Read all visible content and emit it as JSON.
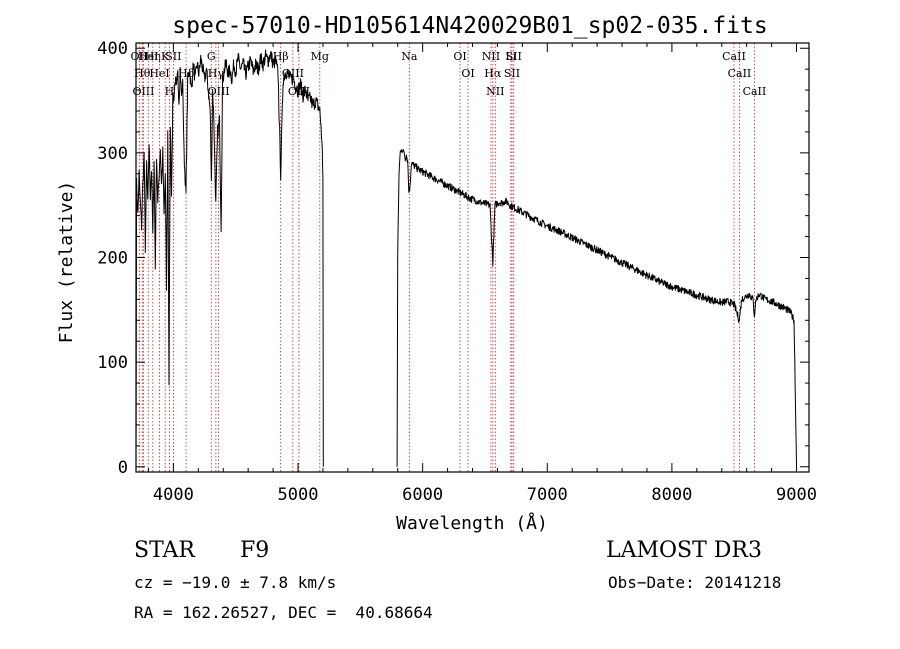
{
  "chart_data": {
    "type": "line",
    "title": "spec-57010-HD105614N420029B01_sp02-035.fits",
    "xlabel": "Wavelength (Å)",
    "ylabel": "Flux (relative)",
    "xlim": [
      3700,
      9100
    ],
    "ylim": [
      -5,
      405
    ],
    "xticks": [
      4000,
      5000,
      6000,
      7000,
      8000,
      9000
    ],
    "yticks": [
      0,
      100,
      200,
      300,
      400
    ],
    "grid": false,
    "series": [
      {
        "segments": [
          [
            [
              3700,
              0
            ],
            [
              3705,
              270
            ],
            [
              3715,
              240
            ],
            [
              3725,
              280
            ],
            [
              3735,
              250
            ],
            [
              3745,
              230
            ],
            [
              3755,
              270
            ],
            [
              3765,
              300
            ],
            [
              3775,
              210
            ],
            [
              3785,
              290
            ],
            [
              3795,
              250
            ],
            [
              3805,
              310
            ],
            [
              3815,
              260
            ],
            [
              3825,
              285
            ],
            [
              3835,
              220
            ],
            [
              3845,
              295
            ],
            [
              3855,
              190
            ],
            [
              3865,
              300
            ],
            [
              3875,
              250
            ],
            [
              3885,
              280
            ],
            [
              3895,
              305
            ],
            [
              3905,
              270
            ],
            [
              3915,
              300
            ],
            [
              3925,
              240
            ],
            [
              3935,
              280
            ],
            [
              3945,
              170
            ],
            [
              3955,
              320
            ],
            [
              3965,
              80
            ],
            [
              3975,
              330
            ],
            [
              3985,
              260
            ],
            [
              3995,
              350
            ],
            [
              4005,
              355
            ],
            [
              4015,
              370
            ],
            [
              4025,
              360
            ],
            [
              4035,
              375
            ],
            [
              4045,
              350
            ],
            [
              4055,
              380
            ],
            [
              4065,
              355
            ],
            [
              4075,
              365
            ],
            [
              4085,
              300
            ],
            [
              4101,
              260
            ],
            [
              4115,
              370
            ],
            [
              4130,
              380
            ],
            [
              4145,
              360
            ],
            [
              4160,
              385
            ],
            [
              4175,
              370
            ],
            [
              4190,
              385
            ],
            [
              4205,
              375
            ],
            [
              4220,
              390
            ],
            [
              4235,
              380
            ],
            [
              4250,
              370
            ],
            [
              4265,
              380
            ],
            [
              4280,
              360
            ],
            [
              4295,
              340
            ],
            [
              4305,
              270
            ],
            [
              4315,
              360
            ],
            [
              4325,
              330
            ],
            [
              4340,
              250
            ],
            [
              4355,
              320
            ],
            [
              4370,
              330
            ],
            [
              4383,
              230
            ],
            [
              4395,
              370
            ],
            [
              4410,
              380
            ],
            [
              4425,
              385
            ],
            [
              4440,
              375
            ],
            [
              4455,
              380
            ],
            [
              4470,
              370
            ],
            [
              4485,
              385
            ],
            [
              4500,
              378
            ],
            [
              4520,
              390
            ],
            [
              4540,
              380
            ],
            [
              4560,
              385
            ],
            [
              4580,
              375
            ],
            [
              4600,
              382
            ],
            [
              4620,
              388
            ],
            [
              4640,
              378
            ],
            [
              4660,
              384
            ],
            [
              4680,
              380
            ],
            [
              4700,
              390
            ],
            [
              4720,
              385
            ],
            [
              4740,
              392
            ],
            [
              4760,
              388
            ],
            [
              4780,
              395
            ],
            [
              4800,
              385
            ],
            [
              4820,
              388
            ],
            [
              4840,
              375
            ],
            [
              4861,
              280
            ],
            [
              4880,
              370
            ],
            [
              4900,
              378
            ],
            [
              4920,
              375
            ],
            [
              4940,
              370
            ],
            [
              4960,
              372
            ],
            [
              4980,
              365
            ],
            [
              5000,
              360
            ],
            [
              5020,
              365
            ],
            [
              5040,
              355
            ],
            [
              5060,
              360
            ],
            [
              5080,
              350
            ],
            [
              5100,
              352
            ],
            [
              5120,
              345
            ],
            [
              5140,
              350
            ],
            [
              5160,
              345
            ],
            [
              5175,
              340
            ],
            [
              5185,
              325
            ],
            [
              5195,
              300
            ],
            [
              5200,
              280
            ],
            [
              5203,
              0
            ]
          ],
          [
            [
              5795,
              0
            ],
            [
              5800,
              200
            ],
            [
              5810,
              280
            ],
            [
              5820,
              300
            ],
            [
              5830,
              305
            ],
            [
              5840,
              300
            ],
            [
              5850,
              302
            ],
            [
              5860,
              295
            ],
            [
              5870,
              298
            ],
            [
              5880,
              292
            ],
            [
              5889,
              265
            ],
            [
              5896,
              265
            ],
            [
              5910,
              290
            ],
            [
              5930,
              288
            ],
            [
              5950,
              286
            ],
            [
              5970,
              284
            ],
            [
              6000,
              282
            ],
            [
              6030,
              280
            ],
            [
              6060,
              278
            ],
            [
              6090,
              276
            ],
            [
              6120,
              274
            ],
            [
              6150,
              272
            ],
            [
              6180,
              270
            ],
            [
              6210,
              268
            ],
            [
              6240,
              266
            ],
            [
              6270,
              264
            ],
            [
              6300,
              262
            ],
            [
              6330,
              260
            ],
            [
              6360,
              258
            ],
            [
              6390,
              256
            ],
            [
              6420,
              255
            ],
            [
              6450,
              253
            ],
            [
              6480,
              252
            ],
            [
              6510,
              251
            ],
            [
              6540,
              250
            ],
            [
              6563,
              195
            ],
            [
              6580,
              250
            ],
            [
              6600,
              252
            ],
            [
              6620,
              253
            ],
            [
              6640,
              252
            ],
            [
              6660,
              254
            ],
            [
              6680,
              253
            ],
            [
              6700,
              250
            ],
            [
              6730,
              248
            ],
            [
              6760,
              246
            ],
            [
              6790,
              244
            ],
            [
              6820,
              242
            ],
            [
              6850,
              240
            ],
            [
              6880,
              238
            ],
            [
              6910,
              236
            ],
            [
              6940,
              234
            ],
            [
              6970,
              232
            ],
            [
              7000,
              230
            ],
            [
              7100,
              225
            ],
            [
              7200,
              219
            ],
            [
              7300,
              213
            ],
            [
              7400,
              207
            ],
            [
              7500,
              201
            ],
            [
              7600,
              195
            ],
            [
              7700,
              189
            ],
            [
              7800,
              183
            ],
            [
              7900,
              177
            ],
            [
              8000,
              172
            ],
            [
              8100,
              168
            ],
            [
              8200,
              164
            ],
            [
              8300,
              160
            ],
            [
              8400,
              157
            ],
            [
              8450,
              158
            ],
            [
              8500,
              155
            ],
            [
              8540,
              140
            ],
            [
              8560,
              160
            ],
            [
              8620,
              165
            ],
            [
              8650,
              160
            ],
            [
              8662,
              145
            ],
            [
              8675,
              160
            ],
            [
              8700,
              165
            ],
            [
              8750,
              160
            ],
            [
              8800,
              158
            ],
            [
              8850,
              155
            ],
            [
              8900,
              152
            ],
            [
              8950,
              148
            ],
            [
              8980,
              140
            ],
            [
              9000,
              0
            ]
          ]
        ]
      }
    ],
    "line_markers": [
      {
        "wavelength": 3727,
        "label": "OII"
      },
      {
        "wavelength": 3750,
        "label": "Hθ"
      },
      {
        "wavelength": 3760,
        "label": "OIII"
      },
      {
        "wavelength": 3798,
        "label": "HeI"
      },
      {
        "wavelength": 3835,
        "label": "Hη"
      },
      {
        "wavelength": 3889,
        "label": "HeI"
      },
      {
        "wavelength": 3934,
        "label": "K"
      },
      {
        "wavelength": 3968,
        "label": "H"
      },
      {
        "wavelength": 4000,
        "label": "SII"
      },
      {
        "wavelength": 4102,
        "label": "Hδ"
      },
      {
        "wavelength": 4304,
        "label": "G"
      },
      {
        "wavelength": 4341,
        "label": "Hγ"
      },
      {
        "wavelength": 4363,
        "label": "OIII"
      },
      {
        "wavelength": 4861,
        "label": "Hβ"
      },
      {
        "wavelength": 4959,
        "label": "OIII"
      },
      {
        "wavelength": 5007,
        "label": "OIII"
      },
      {
        "wavelength": 5175,
        "label": "Mg"
      },
      {
        "wavelength": 5893,
        "label": "Na"
      },
      {
        "wavelength": 6300,
        "label": "OI"
      },
      {
        "wavelength": 6364,
        "label": "OI"
      },
      {
        "wavelength": 6548,
        "label": "NII"
      },
      {
        "wavelength": 6563,
        "label": "Hα"
      },
      {
        "wavelength": 6583,
        "label": "NII"
      },
      {
        "wavelength": 6708,
        "label": "Li"
      },
      {
        "wavelength": 6717,
        "label": "SII"
      },
      {
        "wavelength": 6731,
        "label": "SII"
      },
      {
        "wavelength": 8498,
        "label": "CaII"
      },
      {
        "wavelength": 8542,
        "label": "CaII"
      },
      {
        "wavelength": 8662,
        "label": "CaII"
      }
    ]
  },
  "info": {
    "object_class": "STAR",
    "subclass": "F9",
    "survey": "LAMOST DR3",
    "cz": "cz = −19.0 ± 7.8 km/s",
    "obs_date": "Obs−Date: 20141218",
    "coords": "RA = 162.26527, DEC =  40.68664"
  },
  "colors": {
    "spectrum": "#000000",
    "marker_line": "#cc2222",
    "marker_text": "#000000"
  }
}
